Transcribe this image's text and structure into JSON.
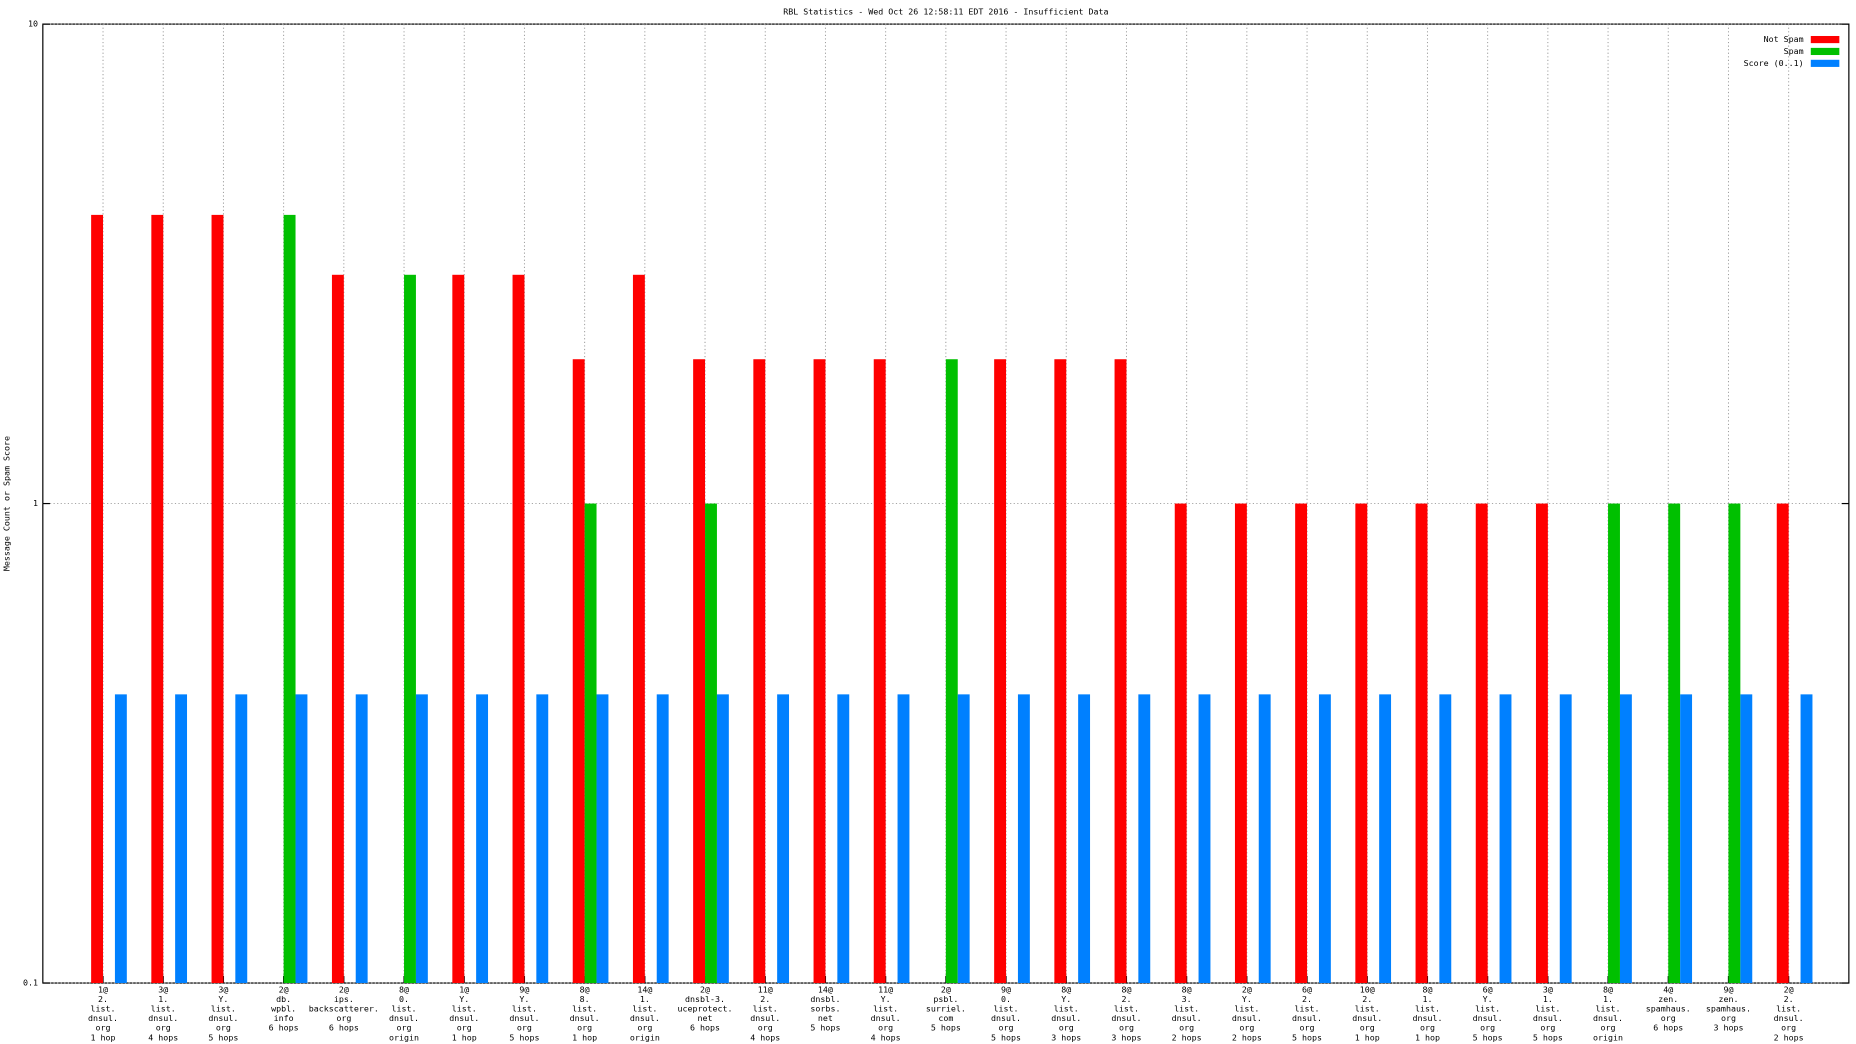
{
  "chart_data": {
    "type": "bar",
    "title": "RBL Statistics - Wed Oct 26 12:58:11 EDT 2016 - Insufficient Data",
    "y_label": "Message Count or Spam Score",
    "log_y": true,
    "grid": true,
    "legend": "top-right",
    "ylim": [
      0.1,
      10
    ],
    "yticks": [
      0.1,
      1,
      10
    ],
    "categories": [
      [
        "1@",
        "2.",
        "list.",
        "dnsul.",
        "org",
        "1 hop"
      ],
      [
        "3@",
        "1.",
        "list.",
        "dnsul.",
        "org",
        "4 hops"
      ],
      [
        "3@",
        "Y.",
        "list.",
        "dnsul.",
        "org",
        "5 hops"
      ],
      [
        "2@",
        "db.",
        "wpbl.",
        "info",
        "6 hops"
      ],
      [
        "2@",
        "ips.",
        "backscatterer.",
        "org",
        "6 hops"
      ],
      [
        "8@",
        "0.",
        "list.",
        "dnsul.",
        "org",
        "origin"
      ],
      [
        "1@",
        "Y.",
        "list.",
        "dnsul.",
        "org",
        "1 hop"
      ],
      [
        "9@",
        "Y.",
        "list.",
        "dnsul.",
        "org",
        "5 hops"
      ],
      [
        "8@",
        "8.",
        "list.",
        "dnsul.",
        "org",
        "1 hop"
      ],
      [
        "14@",
        "1.",
        "list.",
        "dnsul.",
        "org",
        "origin"
      ],
      [
        "2@",
        "dnsbl-3.",
        "uceprotect.",
        "net",
        "6 hops"
      ],
      [
        "11@",
        "2.",
        "list.",
        "dnsul.",
        "org",
        "4 hops"
      ],
      [
        "14@",
        "dnsbl.",
        "sorbs.",
        "net",
        "5 hops"
      ],
      [
        "11@",
        "Y.",
        "list.",
        "dnsul.",
        "org",
        "4 hops"
      ],
      [
        "2@",
        "psbl.",
        "surriel.",
        "com",
        "5 hops"
      ],
      [
        "9@",
        "0.",
        "list.",
        "dnsul.",
        "org",
        "5 hops"
      ],
      [
        "8@",
        "Y.",
        "list.",
        "dnsul.",
        "org",
        "3 hops"
      ],
      [
        "8@",
        "2.",
        "list.",
        "dnsul.",
        "org",
        "3 hops"
      ],
      [
        "8@",
        "3.",
        "list.",
        "dnsul.",
        "org",
        "2 hops"
      ],
      [
        "2@",
        "Y.",
        "list.",
        "dnsul.",
        "org",
        "2 hops"
      ],
      [
        "6@",
        "2.",
        "list.",
        "dnsul.",
        "org",
        "5 hops"
      ],
      [
        "10@",
        "2.",
        "list.",
        "dnsul.",
        "org",
        "1 hop"
      ],
      [
        "8@",
        "1.",
        "list.",
        "dnsul.",
        "org",
        "1 hop"
      ],
      [
        "6@",
        "Y.",
        "list.",
        "dnsul.",
        "org",
        "5 hops"
      ],
      [
        "3@",
        "1.",
        "list.",
        "dnsul.",
        "org",
        "5 hops"
      ],
      [
        "8@",
        "1.",
        "list.",
        "dnsul.",
        "org",
        "origin"
      ],
      [
        "4@",
        "zen.",
        "spamhaus.",
        "org",
        "6 hops"
      ],
      [
        "9@",
        "zen.",
        "spamhaus.",
        "org",
        "3 hops"
      ],
      [
        "2@",
        "2.",
        "list.",
        "dnsul.",
        "org",
        "2 hops"
      ]
    ],
    "series": [
      {
        "name": "Not Spam",
        "color": "#ff0000",
        "values": [
          4,
          4,
          4,
          null,
          3,
          null,
          3,
          3,
          2,
          3,
          2,
          2,
          2,
          2,
          null,
          2,
          2,
          2,
          1,
          1,
          1,
          1,
          1,
          1,
          1,
          null,
          null,
          null,
          1
        ]
      },
      {
        "name": "Spam",
        "color": "#00c000",
        "values": [
          null,
          null,
          null,
          4,
          null,
          3,
          null,
          null,
          1,
          null,
          1,
          null,
          null,
          null,
          2,
          null,
          null,
          null,
          null,
          null,
          null,
          null,
          null,
          null,
          null,
          1,
          1,
          1,
          null
        ]
      },
      {
        "name": "Score (0..1)",
        "color": "#0080ff",
        "values": [
          0.4,
          0.4,
          0.4,
          0.4,
          0.4,
          0.4,
          0.4,
          0.4,
          0.4,
          0.4,
          0.4,
          0.4,
          0.4,
          0.4,
          0.4,
          0.4,
          0.4,
          0.4,
          0.4,
          0.4,
          0.4,
          0.4,
          0.4,
          0.4,
          0.4,
          0.4,
          0.4,
          0.4,
          0.4
        ]
      }
    ]
  }
}
